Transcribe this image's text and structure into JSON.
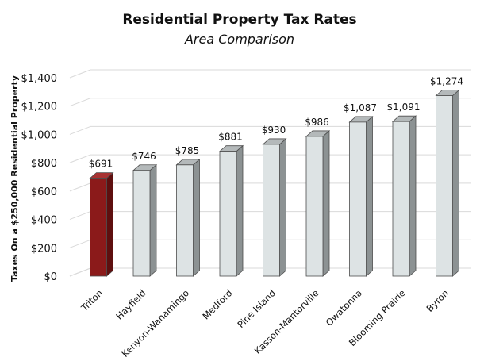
{
  "chart_data": {
    "type": "bar",
    "title": "Residential Property Tax Rates",
    "subtitle": "Area Comparison",
    "xlabel": "",
    "ylabel": "Taxes On a $250,000  Residential Property",
    "categories": [
      "Triton",
      "Hayfield",
      "Kenyon-Wanamingo",
      "Medford",
      "Pine Island",
      "Kasson-Mantorville",
      "Owatonna",
      "Blooming Prairie",
      "Byron"
    ],
    "values": [
      691,
      746,
      785,
      881,
      930,
      986,
      1087,
      1091,
      1274
    ],
    "data_labels": [
      "$691",
      "$746",
      "$785",
      "$881",
      "$930",
      "$986",
      "$1,087",
      "$1,091",
      "$1,274"
    ],
    "ylim": [
      0,
      1400
    ],
    "yticks": [
      0,
      200,
      400,
      600,
      800,
      1000,
      1200,
      1400
    ],
    "ytick_labels": [
      "$0",
      "$200",
      "$400",
      "$600",
      "$800",
      "$1,000",
      "$1,200",
      "$1,400"
    ],
    "grid": true,
    "highlight_index": 0,
    "colors": {
      "highlight_front": "#8b1a1a",
      "highlight_side": "#5e0f0f",
      "highlight_top": "#a83232",
      "bar_front": "#dde3e4",
      "bar_side": "#8c9293",
      "bar_top": "#b4b9ba",
      "bar_outline": "#4d4d4d"
    }
  }
}
